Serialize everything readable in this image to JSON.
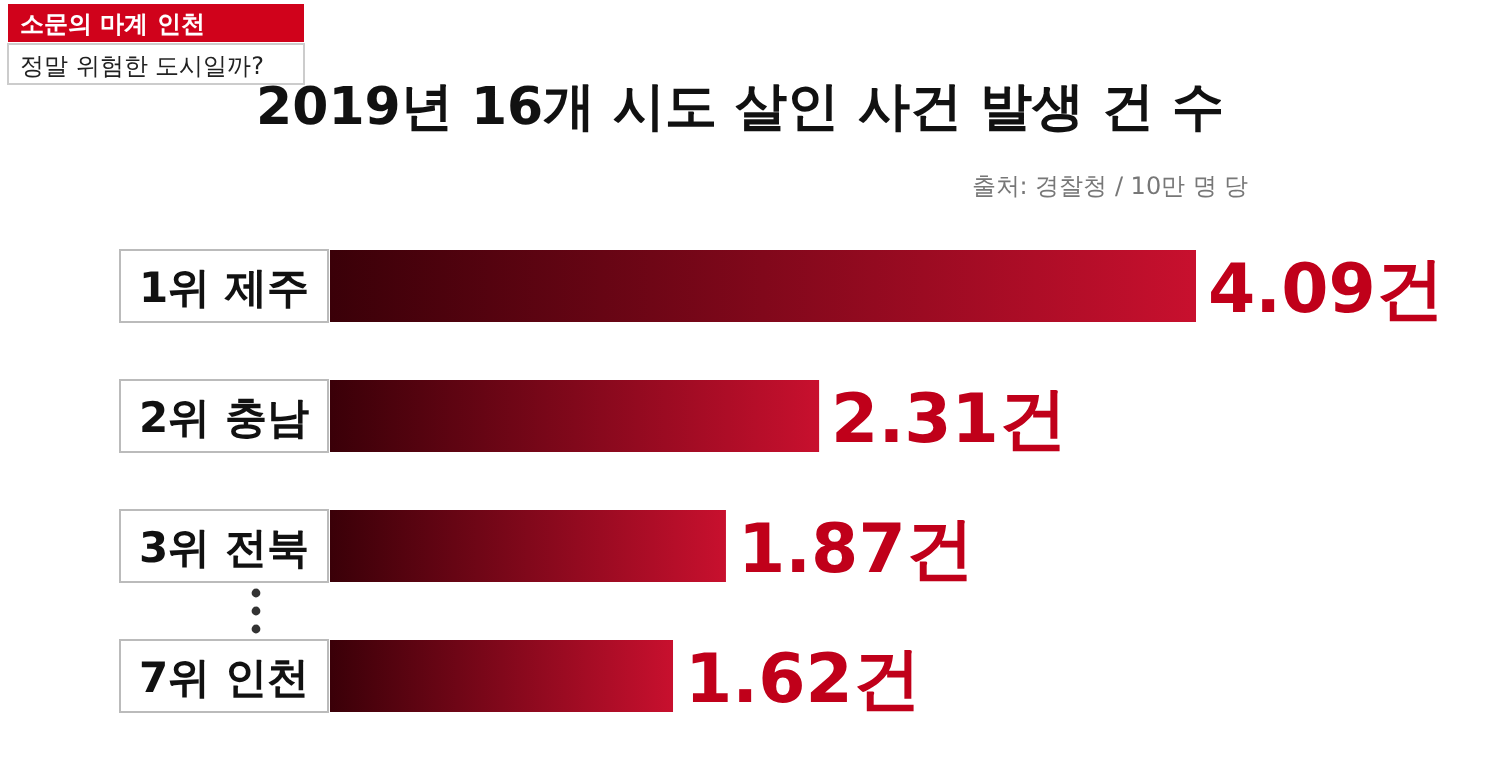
{
  "chart_data": {
    "type": "bar",
    "orientation": "horizontal",
    "title": "2019년 16개 시도 살인 사건 발생 건 수",
    "subtitle": "출처: 경찰청 / 10만 명 당",
    "annotations": [
      "소문의 마계 인천",
      "정말 위험한 도시일까?"
    ],
    "categories": [
      "1위 제주",
      "2위 충남",
      "3위 전북",
      "7위 인천"
    ],
    "values": [
      4.09,
      2.31,
      1.87,
      1.62
    ],
    "value_labels": [
      "4.09건",
      "2.31건",
      "1.87건",
      "1.62건"
    ],
    "color": "#c8102e",
    "xlim": [
      0,
      4.09
    ]
  }
}
